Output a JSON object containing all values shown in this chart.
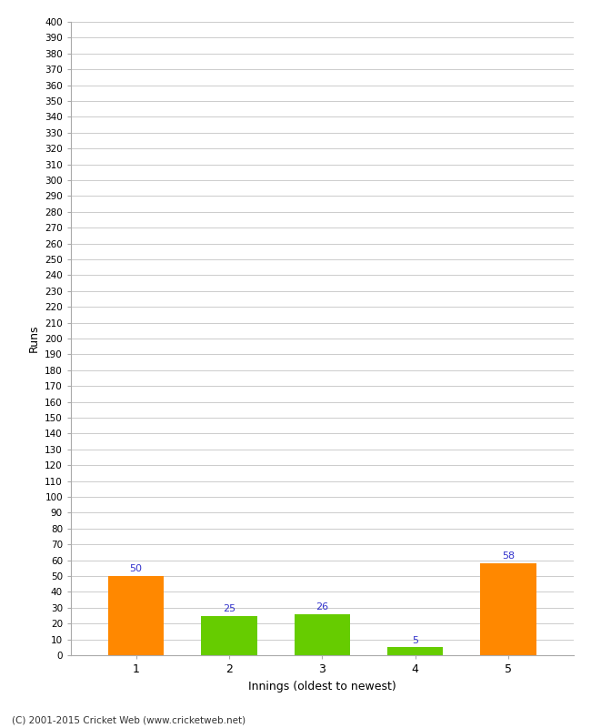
{
  "xlabel": "Innings (oldest to newest)",
  "ylabel": "Runs",
  "categories": [
    1,
    2,
    3,
    4,
    5
  ],
  "values": [
    50,
    25,
    26,
    5,
    58
  ],
  "bar_colors": [
    "#ff8800",
    "#66cc00",
    "#66cc00",
    "#66cc00",
    "#ff8800"
  ],
  "ylim": [
    0,
    400
  ],
  "ytick_step": 10,
  "label_color": "#3333cc",
  "background_color": "#ffffff",
  "grid_color": "#cccccc",
  "footer": "(C) 2001-2015 Cricket Web (www.cricketweb.net)"
}
